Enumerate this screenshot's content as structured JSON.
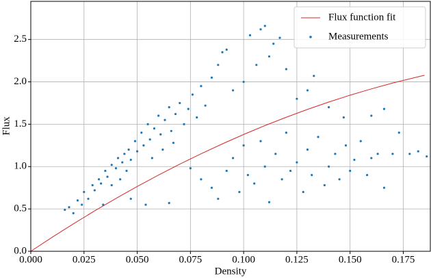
{
  "chart_data": {
    "type": "scatter",
    "xlabel": "Density",
    "ylabel": "Flux",
    "xlim": [
      0,
      0.1877
    ],
    "ylim": [
      0,
      2.95
    ],
    "xticks": [
      {
        "value": 0,
        "label": "0.000"
      },
      {
        "value": 0.025,
        "label": "0.025"
      },
      {
        "value": 0.05,
        "label": "0.050"
      },
      {
        "value": 0.075,
        "label": "0.075"
      },
      {
        "value": 0.1,
        "label": "0.100"
      },
      {
        "value": 0.125,
        "label": "0.125"
      },
      {
        "value": 0.15,
        "label": "0.150"
      },
      {
        "value": 0.175,
        "label": "0.175"
      }
    ],
    "yticks": [
      {
        "value": 0,
        "label": "0.0"
      },
      0.5,
      {
        "value": 1,
        "label": "1.0"
      },
      1.5,
      {
        "value": 2,
        "label": "2.0"
      },
      2.5
    ],
    "grid": true,
    "legend": "upper right",
    "series": [
      {
        "name": "Flux function fit",
        "kind": "line",
        "color": "#d62728",
        "x": [
          0,
          0.01,
          0.02,
          0.03,
          0.04,
          0.05,
          0.06,
          0.07,
          0.08,
          0.09,
          0.1,
          0.11,
          0.12,
          0.13,
          0.14,
          0.15,
          0.16,
          0.17,
          0.18,
          0.185
        ],
        "values": [
          0,
          0.165,
          0.324,
          0.477,
          0.624,
          0.765,
          0.9,
          1.029,
          1.151,
          1.268,
          1.379,
          1.484,
          1.582,
          1.675,
          1.762,
          1.843,
          1.917,
          1.986,
          2.048,
          2.078
        ]
      },
      {
        "name": "Measurements",
        "kind": "markers",
        "color": "#1f77b4",
        "x": [
          0.016,
          0.018,
          0.02,
          0.022,
          0.024,
          0.025,
          0.027,
          0.029,
          0.03,
          0.032,
          0.033,
          0.035,
          0.036,
          0.038,
          0.04,
          0.041,
          0.043,
          0.044,
          0.046,
          0.047,
          0.049,
          0.05,
          0.052,
          0.053,
          0.055,
          0.056,
          0.058,
          0.06,
          0.061,
          0.063,
          0.065,
          0.066,
          0.068,
          0.07,
          0.072,
          0.074,
          0.076,
          0.078,
          0.08,
          0.082,
          0.085,
          0.088,
          0.09,
          0.092,
          0.057,
          0.062,
          0.067,
          0.045,
          0.038,
          0.042,
          0.034,
          0.047,
          0.054,
          0.065,
          0.075,
          0.08,
          0.085,
          0.088,
          0.092,
          0.095,
          0.098,
          0.1,
          0.102,
          0.105,
          0.108,
          0.11,
          0.112,
          0.115,
          0.118,
          0.12,
          0.122,
          0.125,
          0.128,
          0.13,
          0.132,
          0.135,
          0.138,
          0.14,
          0.143,
          0.145,
          0.148,
          0.15,
          0.152,
          0.155,
          0.158,
          0.16,
          0.163,
          0.166,
          0.17,
          0.173,
          0.178,
          0.182,
          0.186,
          0.095,
          0.1,
          0.103,
          0.106,
          0.108,
          0.11,
          0.112,
          0.114,
          0.117,
          0.12,
          0.125,
          0.13,
          0.133,
          0.14,
          0.147,
          0.16,
          0.166
        ],
        "values": [
          0.49,
          0.52,
          0.45,
          0.6,
          0.55,
          0.7,
          0.62,
          0.78,
          0.72,
          0.85,
          0.8,
          0.95,
          0.88,
          1.02,
          0.98,
          1.1,
          1.05,
          1.15,
          1.2,
          1.08,
          1.3,
          1.18,
          1.4,
          1.25,
          1.5,
          1.32,
          1.45,
          1.6,
          1.38,
          1.55,
          1.7,
          1.42,
          1.62,
          1.75,
          1.5,
          1.68,
          1.85,
          1.58,
          1.95,
          1.72,
          2.05,
          2.2,
          2.35,
          2.38,
          1.1,
          1.2,
          1.28,
          0.95,
          0.78,
          0.85,
          0.55,
          0.62,
          0.55,
          0.57,
          0.98,
          0.85,
          0.75,
          0.62,
          0.95,
          1.1,
          0.7,
          1.25,
          0.9,
          0.8,
          1.3,
          1.0,
          0.58,
          1.15,
          0.85,
          1.4,
          0.95,
          1.05,
          0.7,
          1.2,
          0.9,
          1.35,
          0.78,
          1.0,
          1.15,
          0.85,
          1.25,
          0.95,
          1.08,
          1.3,
          0.9,
          1.1,
          1.15,
          0.75,
          1.15,
          1.4,
          1.15,
          1.18,
          1.12,
          1.9,
          2.0,
          2.55,
          2.2,
          2.62,
          2.66,
          2.3,
          2.45,
          2.52,
          2.15,
          1.8,
          1.9,
          2.07,
          1.7,
          1.58,
          1.6,
          1.68
        ]
      }
    ]
  }
}
